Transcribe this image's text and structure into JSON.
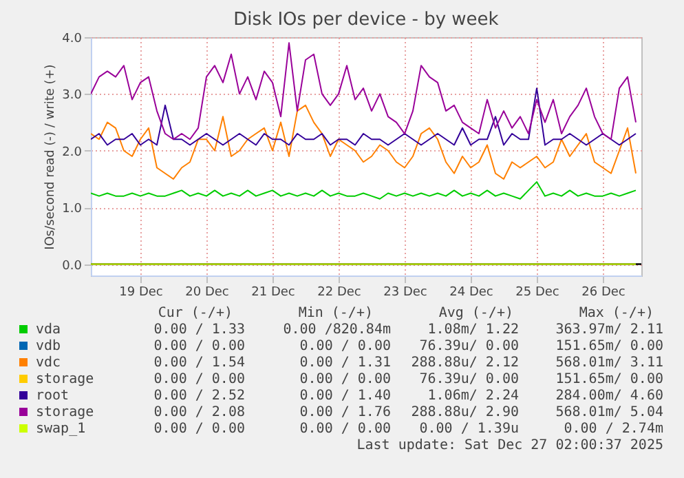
{
  "chart_data": {
    "type": "line",
    "title": "Disk IOs per device - by week",
    "ylabel": "IOs/second read (-) / write (+)",
    "x": [
      "2025-12-18T06:00",
      "2025-12-18T09:00",
      "2025-12-18T12:00",
      "2025-12-18T15:00",
      "2025-12-18T18:00",
      "2025-12-18T21:00",
      "2025-12-19T00:00",
      "2025-12-19T03:00",
      "2025-12-19T06:00",
      "2025-12-19T09:00",
      "2025-12-19T12:00",
      "2025-12-19T15:00",
      "2025-12-19T18:00",
      "2025-12-19T21:00",
      "2025-12-20T00:00",
      "2025-12-20T03:00",
      "2025-12-20T06:00",
      "2025-12-20T09:00",
      "2025-12-20T12:00",
      "2025-12-20T15:00",
      "2025-12-20T18:00",
      "2025-12-20T21:00",
      "2025-12-21T00:00",
      "2025-12-21T03:00",
      "2025-12-21T06:00",
      "2025-12-21T09:00",
      "2025-12-21T12:00",
      "2025-12-21T15:00",
      "2025-12-21T18:00",
      "2025-12-21T21:00",
      "2025-12-22T00:00",
      "2025-12-22T03:00",
      "2025-12-22T06:00",
      "2025-12-22T09:00",
      "2025-12-22T12:00",
      "2025-12-22T15:00",
      "2025-12-22T18:00",
      "2025-12-22T21:00",
      "2025-12-23T00:00",
      "2025-12-23T03:00",
      "2025-12-23T06:00",
      "2025-12-23T09:00",
      "2025-12-23T12:00",
      "2025-12-23T15:00",
      "2025-12-23T18:00",
      "2025-12-23T21:00",
      "2025-12-24T00:00",
      "2025-12-24T03:00",
      "2025-12-24T06:00",
      "2025-12-24T09:00",
      "2025-12-24T12:00",
      "2025-12-24T15:00",
      "2025-12-24T18:00",
      "2025-12-24T21:00",
      "2025-12-25T00:00",
      "2025-12-25T03:00",
      "2025-12-25T06:00",
      "2025-12-25T09:00",
      "2025-12-25T12:00",
      "2025-12-25T15:00",
      "2025-12-25T18:00",
      "2025-12-25T21:00",
      "2025-12-26T00:00",
      "2025-12-26T03:00",
      "2025-12-26T06:00",
      "2025-12-26T09:00",
      "2025-12-26T12:00"
    ],
    "series": [
      {
        "name": "vda",
        "color": "#00cc00",
        "values": [
          1.25,
          1.2,
          1.25,
          1.2,
          1.2,
          1.25,
          1.2,
          1.25,
          1.2,
          1.2,
          1.25,
          1.3,
          1.2,
          1.25,
          1.2,
          1.3,
          1.2,
          1.25,
          1.2,
          1.3,
          1.2,
          1.25,
          1.3,
          1.2,
          1.25,
          1.2,
          1.25,
          1.2,
          1.3,
          1.2,
          1.25,
          1.2,
          1.2,
          1.25,
          1.2,
          1.15,
          1.25,
          1.2,
          1.25,
          1.2,
          1.25,
          1.2,
          1.25,
          1.2,
          1.3,
          1.2,
          1.25,
          1.2,
          1.3,
          1.2,
          1.25,
          1.2,
          1.15,
          1.3,
          1.45,
          1.2,
          1.25,
          1.2,
          1.3,
          1.2,
          1.25,
          1.2,
          1.2,
          1.25,
          1.2,
          1.25,
          1.3
        ]
      },
      {
        "name": "vdb",
        "color": "#0066b3",
        "values": [
          null,
          null,
          null,
          null,
          null,
          null,
          null,
          null,
          null,
          null,
          null,
          null,
          null,
          null,
          null,
          null,
          null,
          null,
          null,
          null,
          null,
          null,
          null,
          null,
          null,
          null,
          null,
          null,
          null,
          null,
          null,
          null,
          null,
          null,
          null,
          null,
          null,
          null,
          null,
          null,
          null,
          null,
          null,
          null,
          null,
          null,
          null,
          null,
          null,
          null,
          null,
          null,
          null,
          null,
          null,
          null,
          null,
          null,
          null,
          null,
          null,
          null,
          null,
          null,
          null,
          null,
          null
        ]
      },
      {
        "name": "vdc",
        "color": "#ff8000",
        "values": [
          2.3,
          2.2,
          2.5,
          2.4,
          2.0,
          1.9,
          2.2,
          2.4,
          1.7,
          1.6,
          1.5,
          1.7,
          1.8,
          2.2,
          2.2,
          2.0,
          2.6,
          1.9,
          2.0,
          2.2,
          2.3,
          2.4,
          2.0,
          2.5,
          1.9,
          2.7,
          2.8,
          2.5,
          2.3,
          1.9,
          2.2,
          2.1,
          2.0,
          1.8,
          1.9,
          2.1,
          2.0,
          1.8,
          1.7,
          1.9,
          2.3,
          2.4,
          2.2,
          1.8,
          1.6,
          1.9,
          1.7,
          1.8,
          2.1,
          1.6,
          1.5,
          1.8,
          1.7,
          1.8,
          1.9,
          1.7,
          1.8,
          2.2,
          1.9,
          2.1,
          2.3,
          1.8,
          1.7,
          1.6,
          2.0,
          2.4,
          1.6
        ]
      },
      {
        "name": "storage",
        "color": "#ffcc00",
        "values": [
          null,
          null,
          null,
          null,
          null,
          null,
          null,
          null,
          null,
          null,
          null,
          null,
          null,
          null,
          null,
          null,
          null,
          null,
          null,
          null,
          null,
          null,
          null,
          null,
          null,
          null,
          null,
          null,
          null,
          null,
          null,
          null,
          null,
          null,
          null,
          null,
          null,
          null,
          null,
          null,
          null,
          null,
          null,
          null,
          null,
          null,
          null,
          null,
          null,
          null,
          null,
          null,
          null,
          null,
          null,
          null,
          null,
          null,
          null,
          null,
          null,
          null,
          null,
          null,
          null,
          null,
          null
        ]
      },
      {
        "name": "root",
        "color": "#330099",
        "values": [
          2.2,
          2.3,
          2.1,
          2.2,
          2.2,
          2.3,
          2.1,
          2.2,
          2.1,
          2.8,
          2.2,
          2.2,
          2.1,
          2.2,
          2.3,
          2.2,
          2.1,
          2.2,
          2.3,
          2.2,
          2.1,
          2.3,
          2.2,
          2.2,
          2.1,
          2.3,
          2.2,
          2.2,
          2.3,
          2.1,
          2.2,
          2.2,
          2.1,
          2.3,
          2.2,
          2.2,
          2.1,
          2.2,
          2.3,
          2.2,
          2.1,
          2.2,
          2.3,
          2.2,
          2.1,
          2.4,
          2.1,
          2.2,
          2.2,
          2.6,
          2.1,
          2.3,
          2.2,
          2.2,
          3.1,
          2.1,
          2.2,
          2.2,
          2.3,
          2.2,
          2.1,
          2.2,
          2.3,
          2.2,
          2.1,
          2.2,
          2.3
        ]
      },
      {
        "name": "storage",
        "color": "#990099",
        "values": [
          3.0,
          3.3,
          3.4,
          3.3,
          3.5,
          2.9,
          3.2,
          3.3,
          2.7,
          2.3,
          2.2,
          2.3,
          2.2,
          2.4,
          3.3,
          3.5,
          3.2,
          3.7,
          3.0,
          3.3,
          2.9,
          3.4,
          3.2,
          2.6,
          3.9,
          2.7,
          3.6,
          3.7,
          3.0,
          2.8,
          3.0,
          3.5,
          2.9,
          3.1,
          2.7,
          3.0,
          2.6,
          2.5,
          2.3,
          2.7,
          3.5,
          3.3,
          3.2,
          2.7,
          2.8,
          2.5,
          2.4,
          2.3,
          2.9,
          2.4,
          2.7,
          2.4,
          2.6,
          2.3,
          2.9,
          2.5,
          2.9,
          2.3,
          2.6,
          2.8,
          3.1,
          2.6,
          2.3,
          2.2,
          3.1,
          3.3,
          2.5
        ]
      },
      {
        "name": "swap_1",
        "color": "#ccff00",
        "x": [
          "2025-12-18T06:00",
          "2025-12-26T12:00"
        ],
        "values": [
          0,
          0
        ]
      }
    ],
    "xlim": [
      "2025-12-18T06:00",
      "2025-12-26T14:00"
    ],
    "xticks": [
      {
        "value": "2025-12-19T00:00",
        "label": "19 Dec"
      },
      {
        "value": "2025-12-20T00:00",
        "label": "20 Dec"
      },
      {
        "value": "2025-12-21T00:00",
        "label": "21 Dec"
      },
      {
        "value": "2025-12-22T00:00",
        "label": "22 Dec"
      },
      {
        "value": "2025-12-23T00:00",
        "label": "23 Dec"
      },
      {
        "value": "2025-12-24T00:00",
        "label": "24 Dec"
      },
      {
        "value": "2025-12-25T00:00",
        "label": "25 Dec"
      },
      {
        "value": "2025-12-26T00:00",
        "label": "26 Dec"
      }
    ],
    "ylim": [
      -0.2,
      4.0
    ],
    "yticks": [
      {
        "value": 0,
        "label": "0.0"
      },
      {
        "value": 1,
        "label": "1.0"
      },
      {
        "value": 2,
        "label": "2.0"
      },
      {
        "value": 3,
        "label": "3.0"
      },
      {
        "value": 4,
        "label": "4.0"
      }
    ],
    "ref_lines": [
      {
        "axis": "y",
        "value": 0,
        "color": "#000000"
      }
    ],
    "grid": true,
    "legend": "bottom",
    "annotations": [
      "Cur (-/+)",
      "Min (-/+)",
      "Avg (-/+)",
      "Max (-/+)",
      "0.00 /  1.33",
      "0.00 /820.84m",
      "1.08m/  1.22",
      "363.97m/  2.11",
      "0.00 /  0.00",
      "0.00 /  0.00",
      "76.39u/  0.00",
      "151.65m/  0.00",
      "0.00 /  1.54",
      "0.00 /  1.31",
      "288.88u/  2.12",
      "568.01m/  3.11",
      "0.00 /  0.00",
      "0.00 /  0.00",
      "76.39u/  0.00",
      "151.65m/  0.00",
      "0.00 /  2.52",
      "0.00 /  1.40",
      "1.06m/  2.24",
      "284.00m/  4.60",
      "0.00 /  2.08",
      "0.00 /  1.76",
      "288.88u/  2.90",
      "568.01m/  5.04",
      "0.00 /  0.00",
      "0.00 /  0.00",
      "0.00 /  1.39u",
      "0.00 /  2.74m",
      "Last update: Sat Dec 27 02:00:37 2025"
    ]
  }
}
